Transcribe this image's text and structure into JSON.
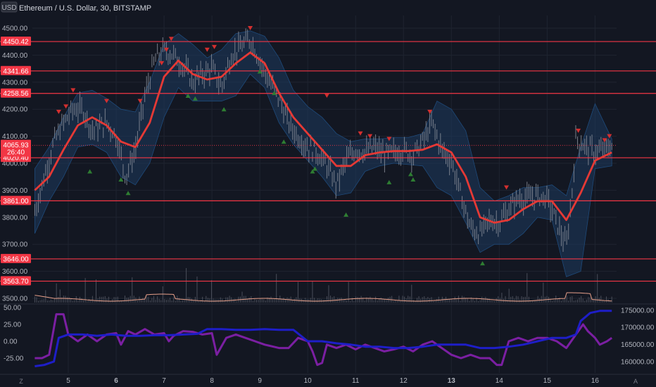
{
  "header": {
    "currency_badge": "USD",
    "title": "Ethereum / U.S. Dollar, 30, BITSTAMP"
  },
  "corner_labels": {
    "left": "Z",
    "right": "A"
  },
  "colors": {
    "background": "#131722",
    "grid": "#1f2430",
    "level_line": "#f23645",
    "ema": "#e53935",
    "band_fill": "#1e3a5f",
    "candle": "#8a8e99",
    "triangle_up": "#2e7d32",
    "triangle_down": "#d32f2f",
    "volume_line": "#e8a08a",
    "osc_purple": "#7b1fa2",
    "osc_blue": "#1e1ec8"
  },
  "chart_data": {
    "type": "line",
    "main_panel": {
      "y_ticks": [
        "4500.00",
        "4400.00",
        "4300.00",
        "4200.00",
        "4100.00",
        "4000.00",
        "3900.00",
        "3800.00",
        "3700.00",
        "3600.00",
        "3500.00"
      ],
      "ylim": [
        3500,
        4600
      ],
      "x_ticks": [
        "5",
        "6",
        "7",
        "8",
        "9",
        "10",
        "11",
        "12",
        "13",
        "14",
        "15",
        "16"
      ],
      "x_tick_values": [
        5,
        6,
        7,
        8,
        9,
        10,
        11,
        12,
        13,
        14,
        15,
        16
      ],
      "xlim": [
        4.25,
        16.45
      ],
      "levels": [
        {
          "value": 4450.42,
          "label": "4450.42"
        },
        {
          "value": 4341.66,
          "label": "4341.66"
        },
        {
          "value": 4258.56,
          "label": "4258.56"
        },
        {
          "value": 4020.4,
          "label": "4020.40"
        },
        {
          "value": 3861.0,
          "label": "3861.00"
        },
        {
          "value": 3646.0,
          "label": "3646.00"
        },
        {
          "value": 3563.7,
          "label": "3563.70"
        }
      ],
      "current_price": {
        "value": 4065.93,
        "label": "4065.93",
        "countdown": "26:40"
      },
      "price_path": [
        [
          4.3,
          3820
        ],
        [
          4.5,
          3950
        ],
        [
          4.7,
          4080
        ],
        [
          4.9,
          4150
        ],
        [
          5.1,
          4200
        ],
        [
          5.3,
          4200
        ],
        [
          5.5,
          4120
        ],
        [
          5.8,
          4150
        ],
        [
          6.0,
          4100
        ],
        [
          6.2,
          3950
        ],
        [
          6.4,
          4050
        ],
        [
          6.6,
          4250
        ],
        [
          6.8,
          4380
        ],
        [
          7.0,
          4420
        ],
        [
          7.2,
          4400
        ],
        [
          7.4,
          4360
        ],
        [
          7.6,
          4300
        ],
        [
          7.8,
          4330
        ],
        [
          8.0,
          4350
        ],
        [
          8.2,
          4280
        ],
        [
          8.4,
          4400
        ],
        [
          8.6,
          4430
        ],
        [
          8.8,
          4460
        ],
        [
          9.0,
          4380
        ],
        [
          9.2,
          4300
        ],
        [
          9.4,
          4240
        ],
        [
          9.6,
          4150
        ],
        [
          9.8,
          4100
        ],
        [
          10.0,
          4060
        ],
        [
          10.2,
          4040
        ],
        [
          10.4,
          3990
        ],
        [
          10.6,
          3920
        ],
        [
          10.8,
          4010
        ],
        [
          11.0,
          4050
        ],
        [
          11.2,
          4040
        ],
        [
          11.4,
          4060
        ],
        [
          11.6,
          4030
        ],
        [
          11.8,
          4040
        ],
        [
          12.0,
          4050
        ],
        [
          12.2,
          4030
        ],
        [
          12.4,
          4080
        ],
        [
          12.6,
          4150
        ],
        [
          12.8,
          4050
        ],
        [
          13.0,
          4010
        ],
        [
          13.2,
          3880
        ],
        [
          13.4,
          3760
        ],
        [
          13.6,
          3740
        ],
        [
          13.8,
          3790
        ],
        [
          14.0,
          3780
        ],
        [
          14.2,
          3830
        ],
        [
          14.4,
          3870
        ],
        [
          14.6,
          3870
        ],
        [
          14.8,
          3880
        ],
        [
          15.0,
          3870
        ],
        [
          15.2,
          3780
        ],
        [
          15.4,
          3690
        ],
        [
          15.5,
          3850
        ],
        [
          15.6,
          4090
        ],
        [
          15.8,
          4060
        ],
        [
          16.0,
          4040
        ],
        [
          16.2,
          4050
        ],
        [
          16.35,
          4066
        ]
      ],
      "ema_path": [
        [
          4.3,
          3900
        ],
        [
          4.6,
          3950
        ],
        [
          4.9,
          4050
        ],
        [
          5.2,
          4140
        ],
        [
          5.5,
          4170
        ],
        [
          5.8,
          4140
        ],
        [
          6.1,
          4080
        ],
        [
          6.4,
          4060
        ],
        [
          6.7,
          4150
        ],
        [
          7.0,
          4320
        ],
        [
          7.3,
          4380
        ],
        [
          7.6,
          4330
        ],
        [
          7.9,
          4310
        ],
        [
          8.2,
          4320
        ],
        [
          8.5,
          4370
        ],
        [
          8.8,
          4410
        ],
        [
          9.1,
          4370
        ],
        [
          9.4,
          4260
        ],
        [
          9.7,
          4170
        ],
        [
          10.0,
          4110
        ],
        [
          10.3,
          4050
        ],
        [
          10.6,
          3990
        ],
        [
          10.9,
          3990
        ],
        [
          11.2,
          4030
        ],
        [
          11.5,
          4040
        ],
        [
          11.8,
          4045
        ],
        [
          12.1,
          4045
        ],
        [
          12.4,
          4050
        ],
        [
          12.7,
          4070
        ],
        [
          13.0,
          4040
        ],
        [
          13.3,
          3950
        ],
        [
          13.6,
          3800
        ],
        [
          13.9,
          3780
        ],
        [
          14.2,
          3790
        ],
        [
          14.5,
          3830
        ],
        [
          14.8,
          3860
        ],
        [
          15.1,
          3860
        ],
        [
          15.4,
          3790
        ],
        [
          15.7,
          3890
        ],
        [
          16.0,
          4010
        ],
        [
          16.35,
          4040
        ]
      ],
      "band_upper": [
        [
          4.3,
          3980
        ],
        [
          4.6,
          4060
        ],
        [
          4.9,
          4170
        ],
        [
          5.2,
          4260
        ],
        [
          5.5,
          4270
        ],
        [
          5.8,
          4240
        ],
        [
          6.1,
          4200
        ],
        [
          6.4,
          4190
        ],
        [
          6.7,
          4300
        ],
        [
          7.0,
          4440
        ],
        [
          7.3,
          4480
        ],
        [
          7.6,
          4440
        ],
        [
          7.9,
          4390
        ],
        [
          8.2,
          4420
        ],
        [
          8.5,
          4480
        ],
        [
          8.8,
          4490
        ],
        [
          9.1,
          4470
        ],
        [
          9.4,
          4390
        ],
        [
          9.7,
          4270
        ],
        [
          10.0,
          4210
        ],
        [
          10.3,
          4170
        ],
        [
          10.6,
          4110
        ],
        [
          10.9,
          4080
        ],
        [
          11.2,
          4090
        ],
        [
          11.5,
          4090
        ],
        [
          11.8,
          4095
        ],
        [
          12.1,
          4095
        ],
        [
          12.4,
          4110
        ],
        [
          12.7,
          4230
        ],
        [
          13.0,
          4200
        ],
        [
          13.3,
          4120
        ],
        [
          13.6,
          3910
        ],
        [
          13.9,
          3860
        ],
        [
          14.2,
          3880
        ],
        [
          14.5,
          3910
        ],
        [
          14.8,
          3910
        ],
        [
          15.1,
          3920
        ],
        [
          15.4,
          3880
        ],
        [
          15.7,
          4060
        ],
        [
          16.0,
          4220
        ],
        [
          16.35,
          4090
        ]
      ],
      "band_lower": [
        [
          4.3,
          3740
        ],
        [
          4.6,
          3860
        ],
        [
          4.9,
          3950
        ],
        [
          5.2,
          4060
        ],
        [
          5.5,
          4070
        ],
        [
          5.8,
          4040
        ],
        [
          6.1,
          3950
        ],
        [
          6.4,
          3920
        ],
        [
          6.7,
          4000
        ],
        [
          7.0,
          4170
        ],
        [
          7.3,
          4280
        ],
        [
          7.6,
          4230
        ],
        [
          7.9,
          4230
        ],
        [
          8.2,
          4230
        ],
        [
          8.5,
          4250
        ],
        [
          8.8,
          4330
        ],
        [
          9.1,
          4280
        ],
        [
          9.4,
          4150
        ],
        [
          9.7,
          4070
        ],
        [
          10.0,
          4010
        ],
        [
          10.3,
          3950
        ],
        [
          10.6,
          3880
        ],
        [
          10.9,
          3890
        ],
        [
          11.2,
          3970
        ],
        [
          11.5,
          3990
        ],
        [
          11.8,
          4000
        ],
        [
          12.1,
          3995
        ],
        [
          12.4,
          3990
        ],
        [
          12.7,
          3910
        ],
        [
          13.0,
          3880
        ],
        [
          13.3,
          3780
        ],
        [
          13.6,
          3670
        ],
        [
          13.9,
          3700
        ],
        [
          14.2,
          3700
        ],
        [
          14.5,
          3740
        ],
        [
          14.8,
          3800
        ],
        [
          15.1,
          3790
        ],
        [
          15.4,
          3580
        ],
        [
          15.7,
          3600
        ],
        [
          16.0,
          3980
        ],
        [
          16.35,
          3990
        ]
      ],
      "signals_down": [
        [
          4.8,
          4190
        ],
        [
          4.95,
          4210
        ],
        [
          5.1,
          4270
        ],
        [
          5.8,
          4230
        ],
        [
          6.5,
          4230
        ],
        [
          6.95,
          4370
        ],
        [
          7.05,
          4420
        ],
        [
          7.15,
          4460
        ],
        [
          7.9,
          4420
        ],
        [
          8.05,
          4430
        ],
        [
          8.8,
          4500
        ],
        [
          10.4,
          4250
        ],
        [
          11.1,
          4110
        ],
        [
          11.3,
          4100
        ],
        [
          11.7,
          4090
        ],
        [
          12.55,
          4190
        ],
        [
          14.15,
          3910
        ],
        [
          15.65,
          4120
        ],
        [
          16.2,
          4085
        ],
        [
          16.3,
          4100
        ]
      ],
      "signals_up": [
        [
          5.45,
          3970
        ],
        [
          6.1,
          3940
        ],
        [
          6.25,
          3890
        ],
        [
          7.5,
          4250
        ],
        [
          7.65,
          4240
        ],
        [
          8.25,
          4200
        ],
        [
          9.0,
          4340
        ],
        [
          9.3,
          4260
        ],
        [
          9.5,
          4080
        ],
        [
          10.1,
          3970
        ],
        [
          10.15,
          3980
        ],
        [
          10.8,
          3810
        ],
        [
          11.7,
          3930
        ],
        [
          12.15,
          3960
        ],
        [
          12.2,
          3940
        ],
        [
          13.65,
          3630
        ]
      ],
      "volume_band": {
        "ylim": [
          3500,
          3575
        ]
      }
    },
    "oscillator_panel": {
      "left_y_ticks": [
        "50.00",
        "25.00",
        "0.00",
        "-25.00"
      ],
      "left_y_values": [
        50,
        25,
        0,
        -25
      ],
      "left_ylim": [
        -40,
        52
      ],
      "right_y_ticks": [
        "175000.00",
        "170000.00",
        "165000.00",
        "160000.00"
      ],
      "right_y_values": [
        175000,
        170000,
        165000,
        160000
      ],
      "right_ylim": [
        157500,
        176000
      ],
      "purple_series": [
        [
          4.3,
          -25
        ],
        [
          4.45,
          -25
        ],
        [
          4.6,
          -20
        ],
        [
          4.75,
          40
        ],
        [
          4.9,
          40
        ],
        [
          5.0,
          10
        ],
        [
          5.2,
          0
        ],
        [
          5.4,
          10
        ],
        [
          5.6,
          0
        ],
        [
          5.8,
          10
        ],
        [
          6.0,
          12
        ],
        [
          6.1,
          -5
        ],
        [
          6.25,
          15
        ],
        [
          6.4,
          10
        ],
        [
          6.6,
          18
        ],
        [
          6.8,
          10
        ],
        [
          7.0,
          12
        ],
        [
          7.1,
          0
        ],
        [
          7.2,
          8
        ],
        [
          7.4,
          15
        ],
        [
          7.6,
          14
        ],
        [
          7.8,
          10
        ],
        [
          8.0,
          12
        ],
        [
          8.1,
          -20
        ],
        [
          8.3,
          5
        ],
        [
          8.5,
          10
        ],
        [
          8.7,
          5
        ],
        [
          8.9,
          0
        ],
        [
          9.1,
          -5
        ],
        [
          9.4,
          -10
        ],
        [
          9.6,
          -10
        ],
        [
          9.8,
          5
        ],
        [
          10.0,
          0
        ],
        [
          10.1,
          -15
        ],
        [
          10.2,
          -35
        ],
        [
          10.3,
          -32
        ],
        [
          10.4,
          -5
        ],
        [
          10.6,
          -10
        ],
        [
          10.8,
          -5
        ],
        [
          11.0,
          -12
        ],
        [
          11.2,
          -5
        ],
        [
          11.4,
          -10
        ],
        [
          11.6,
          -15
        ],
        [
          11.8,
          -12
        ],
        [
          12.0,
          -8
        ],
        [
          12.2,
          -15
        ],
        [
          12.4,
          -5
        ],
        [
          12.6,
          0
        ],
        [
          12.8,
          -10
        ],
        [
          13.0,
          -20
        ],
        [
          13.2,
          -25
        ],
        [
          13.4,
          -20
        ],
        [
          13.6,
          -25
        ],
        [
          13.8,
          -25
        ],
        [
          13.95,
          -35
        ],
        [
          14.05,
          -35
        ],
        [
          14.2,
          0
        ],
        [
          14.4,
          5
        ],
        [
          14.6,
          0
        ],
        [
          14.8,
          5
        ],
        [
          15.0,
          5
        ],
        [
          15.2,
          0
        ],
        [
          15.4,
          -10
        ],
        [
          15.6,
          10
        ],
        [
          15.75,
          25
        ],
        [
          15.85,
          15
        ],
        [
          16.0,
          5
        ],
        [
          16.1,
          -5
        ],
        [
          16.25,
          0
        ],
        [
          16.35,
          5
        ]
      ],
      "blue_series": [
        [
          4.3,
          -37
        ],
        [
          4.5,
          -35
        ],
        [
          4.7,
          -30
        ],
        [
          4.8,
          5
        ],
        [
          5.0,
          10
        ],
        [
          5.3,
          10
        ],
        [
          5.6,
          8
        ],
        [
          5.9,
          10
        ],
        [
          6.2,
          8
        ],
        [
          6.5,
          8
        ],
        [
          6.8,
          9
        ],
        [
          7.1,
          9
        ],
        [
          7.4,
          10
        ],
        [
          7.7,
          11
        ],
        [
          7.9,
          18
        ],
        [
          8.2,
          18
        ],
        [
          8.5,
          17
        ],
        [
          8.8,
          17
        ],
        [
          9.1,
          18
        ],
        [
          9.4,
          17
        ],
        [
          9.7,
          17
        ],
        [
          10.0,
          0
        ],
        [
          10.3,
          0
        ],
        [
          10.6,
          -3
        ],
        [
          10.9,
          -5
        ],
        [
          11.2,
          -8
        ],
        [
          11.5,
          -8
        ],
        [
          11.8,
          -10
        ],
        [
          12.1,
          -10
        ],
        [
          12.4,
          -8
        ],
        [
          12.7,
          -5
        ],
        [
          13.0,
          -5
        ],
        [
          13.3,
          -5
        ],
        [
          13.6,
          -10
        ],
        [
          13.9,
          -10
        ],
        [
          14.2,
          -8
        ],
        [
          14.5,
          -5
        ],
        [
          14.8,
          0
        ],
        [
          15.1,
          5
        ],
        [
          15.4,
          5
        ],
        [
          15.6,
          10
        ],
        [
          15.7,
          30
        ],
        [
          15.9,
          42
        ],
        [
          16.1,
          45
        ],
        [
          16.35,
          45
        ]
      ]
    }
  }
}
